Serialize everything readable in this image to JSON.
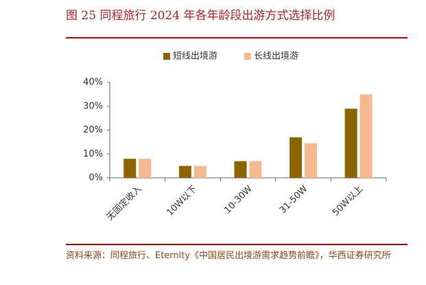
{
  "chart_data": {
    "type": "bar",
    "title": "图 25   同程旅行 2024 年各年龄段出游方式选择比例",
    "categories": [
      "无固定收入",
      "10W以下",
      "10-30W",
      "31-50W",
      "50W以上"
    ],
    "series": [
      {
        "name": "短线出境游",
        "color": "#8c6500",
        "values": [
          8,
          5,
          7,
          17,
          29
        ]
      },
      {
        "name": "长线出境游",
        "color": "#f6b98f",
        "values": [
          8,
          5,
          7,
          14.5,
          35
        ]
      }
    ],
    "ylim": [
      0,
      40
    ],
    "yticks": [
      {
        "value": 0,
        "label": "0%"
      },
      {
        "value": 10,
        "label": "10%"
      },
      {
        "value": 20,
        "label": "20%"
      },
      {
        "value": 30,
        "label": "30%"
      },
      {
        "value": 40,
        "label": "40%"
      }
    ],
    "legend": "top",
    "source": "资料来源：同程旅行、Eternity《中国居民出境游需求趋势前瞻》，华西证券研究所"
  }
}
